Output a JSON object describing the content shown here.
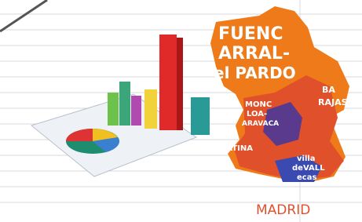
{
  "map": {
    "labels": [
      "FUENC",
      "ARRAL-",
      "el PARDO",
      "MONC",
      "LOA-",
      "ARAVACA",
      "LATINA",
      "BA",
      "RAJAS",
      "villa",
      "deVALL",
      "ecas",
      "MADRID"
    ]
  }
}
